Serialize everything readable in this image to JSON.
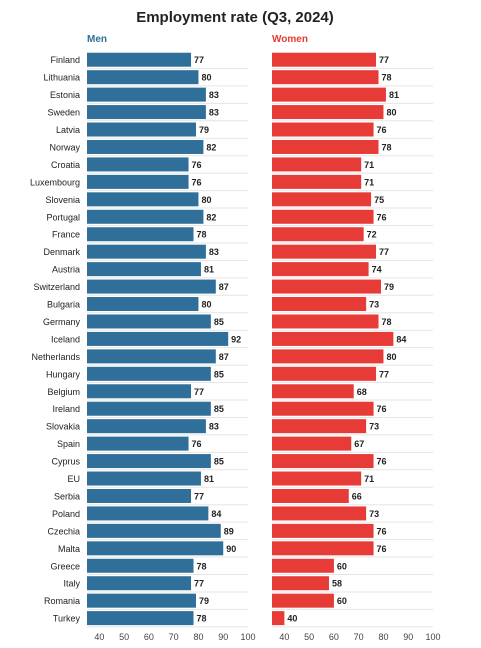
{
  "colors": {
    "men": "#2f6f9a",
    "women": "#e63b36",
    "text": "#222222",
    "gridline": "#e5e5e5",
    "axis_text": "#444444"
  },
  "chart_data": {
    "type": "bar",
    "orientation": "horizontal",
    "layout": "two panels side by side",
    "title": "Employment rate (Q3, 2024)",
    "categories": [
      "Finland",
      "Lithuania",
      "Estonia",
      "Sweden",
      "Latvia",
      "Norway",
      "Croatia",
      "Luxembourg",
      "Slovenia",
      "Portugal",
      "France",
      "Denmark",
      "Austria",
      "Switzerland",
      "Bulgaria",
      "Germany",
      "Iceland",
      "Netherlands",
      "Hungary",
      "Belgium",
      "Ireland",
      "Slovakia",
      "Spain",
      "Cyprus",
      "EU",
      "Serbia",
      "Poland",
      "Czechia",
      "Malta",
      "Greece",
      "Italy",
      "Romania",
      "Turkey"
    ],
    "series": [
      {
        "name": "Men",
        "color": "#2f6f9a",
        "values": [
          77,
          80,
          83,
          83,
          79,
          82,
          76,
          76,
          80,
          82,
          78,
          83,
          81,
          87,
          80,
          85,
          92,
          87,
          85,
          77,
          85,
          83,
          76,
          85,
          81,
          77,
          84,
          89,
          90,
          78,
          77,
          79,
          78
        ]
      },
      {
        "name": "Women",
        "color": "#e63b36",
        "values": [
          77,
          78,
          81,
          80,
          76,
          78,
          71,
          71,
          75,
          76,
          72,
          77,
          74,
          79,
          73,
          78,
          84,
          80,
          77,
          68,
          76,
          73,
          67,
          76,
          71,
          66,
          73,
          76,
          76,
          60,
          58,
          60,
          40
        ]
      }
    ],
    "xlim": [
      35,
      100
    ],
    "xticks": [
      "40",
      "50",
      "60",
      "70",
      "80",
      "90",
      "100"
    ],
    "xtick_values": [
      40,
      50,
      60,
      70,
      80,
      90,
      100
    ],
    "grid": "horizontal lines between rows",
    "data_labels": true
  }
}
